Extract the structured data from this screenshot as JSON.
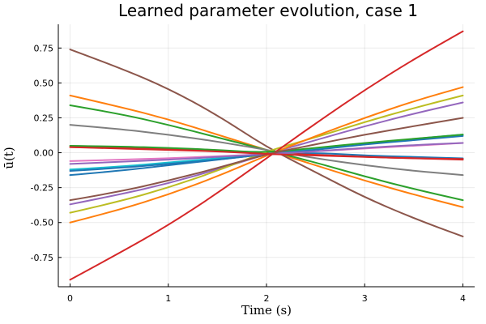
{
  "chart_data": {
    "type": "line",
    "title": "Learned parameter evolution, case 1",
    "xlabel": "Time (s)",
    "ylabel": "ū(t)",
    "xlim": [
      -0.12,
      4.12
    ],
    "ylim": [
      -0.96,
      0.92
    ],
    "xticks": [
      0,
      1,
      2,
      3,
      4
    ],
    "xtick_labels": [
      "0",
      "1",
      "2",
      "3",
      "4"
    ],
    "yticks": [
      -0.75,
      -0.5,
      -0.25,
      0.0,
      0.25,
      0.5,
      0.75
    ],
    "ytick_labels": [
      "-0.75",
      "-0.50",
      "-0.25",
      "0.00",
      "0.25",
      "0.50",
      "0.75"
    ],
    "grid": true,
    "x": [
      0,
      0.5,
      1,
      1.5,
      2,
      2.5,
      3,
      3.5,
      4
    ],
    "series": [
      {
        "color": "#1f77b4",
        "values": [
          -0.16,
          -0.13,
          -0.09,
          -0.05,
          -0.01,
          0.0,
          -0.02,
          -0.03,
          -0.04
        ]
      },
      {
        "color": "#ff7f0e",
        "values": [
          0.41,
          0.33,
          0.24,
          0.13,
          0.02,
          -0.09,
          -0.2,
          -0.3,
          -0.39
        ]
      },
      {
        "color": "#2ca02c",
        "values": [
          0.34,
          0.28,
          0.2,
          0.11,
          0.02,
          -0.07,
          -0.17,
          -0.26,
          -0.34
        ]
      },
      {
        "color": "#d62728",
        "values": [
          0.04,
          0.035,
          0.028,
          0.016,
          0.0,
          -0.015,
          -0.03,
          -0.04,
          -0.05
        ]
      },
      {
        "color": "#9467bd",
        "values": [
          -0.37,
          -0.3,
          -0.22,
          -0.12,
          -0.01,
          0.09,
          0.19,
          0.28,
          0.36
        ]
      },
      {
        "color": "#8c564b",
        "values": [
          0.74,
          0.61,
          0.46,
          0.27,
          0.04,
          -0.14,
          -0.32,
          -0.47,
          -0.6
        ]
      },
      {
        "color": "#e377c2",
        "values": [
          -0.06,
          -0.05,
          -0.04,
          -0.025,
          -0.01,
          0.01,
          0.03,
          0.05,
          0.07
        ]
      },
      {
        "color": "#7f7f7f",
        "values": [
          0.2,
          0.17,
          0.13,
          0.08,
          0.02,
          -0.04,
          -0.09,
          -0.13,
          -0.16
        ]
      },
      {
        "color": "#bcbd22",
        "values": [
          -0.43,
          -0.35,
          -0.25,
          -0.13,
          0.01,
          0.11,
          0.22,
          0.32,
          0.41
        ]
      },
      {
        "color": "#17becf",
        "values": [
          -0.12,
          -0.1,
          -0.07,
          -0.04,
          -0.01,
          0.03,
          0.06,
          0.1,
          0.13
        ]
      },
      {
        "color": "#1f77b4",
        "values": [
          -0.13,
          -0.11,
          -0.08,
          -0.05,
          -0.01,
          0.02,
          0.06,
          0.09,
          0.12
        ]
      },
      {
        "color": "#ff7f0e",
        "values": [
          -0.5,
          -0.41,
          -0.3,
          -0.17,
          -0.02,
          0.12,
          0.25,
          0.37,
          0.47
        ]
      },
      {
        "color": "#2ca02c",
        "values": [
          0.05,
          0.045,
          0.035,
          0.02,
          0.0,
          0.035,
          0.07,
          0.1,
          0.13
        ]
      },
      {
        "color": "#d62728",
        "values": [
          -0.91,
          -0.72,
          -0.52,
          -0.29,
          -0.04,
          0.21,
          0.45,
          0.67,
          0.87
        ]
      },
      {
        "color": "#9467bd",
        "values": [
          -0.08,
          -0.065,
          -0.05,
          -0.03,
          -0.01,
          0.01,
          0.035,
          0.055,
          0.07
        ]
      },
      {
        "color": "#8c564b",
        "values": [
          -0.34,
          -0.28,
          -0.2,
          -0.11,
          -0.01,
          0.06,
          0.13,
          0.19,
          0.25
        ]
      },
      {
        "color": "#d62728",
        "values": [
          0.04,
          0.03,
          0.02,
          0.01,
          -0.01,
          -0.02,
          -0.03,
          -0.04,
          -0.045
        ]
      }
    ]
  }
}
